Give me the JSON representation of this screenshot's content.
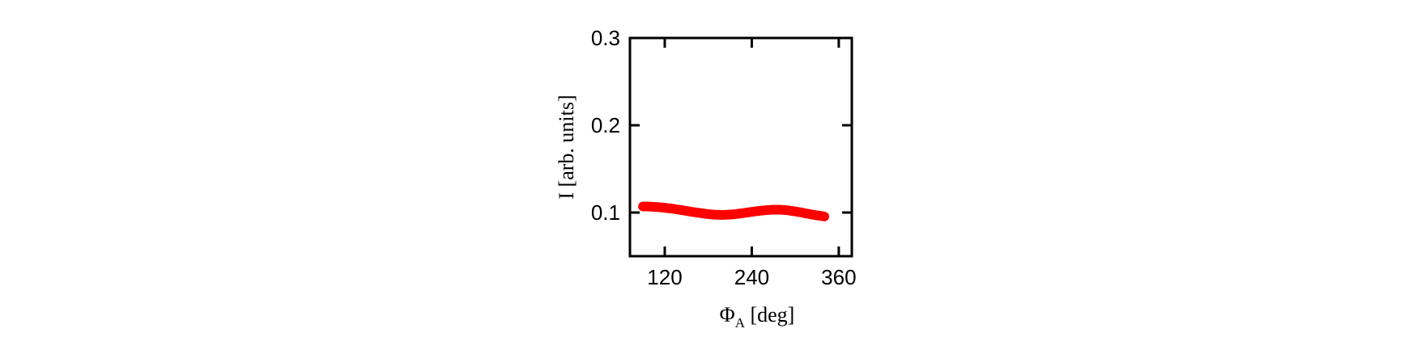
{
  "chart_data": {
    "type": "scatter",
    "xlabel_symbol": "Φ",
    "xlabel_subscript": "A",
    "xlabel_unit": " [deg]",
    "ylabel": "I [arb. units]",
    "xlim": [
      72,
      378
    ],
    "ylim": [
      0.05,
      0.3
    ],
    "xticks": [
      120,
      240,
      360
    ],
    "yticks": [
      0.1,
      0.2,
      0.3
    ],
    "xtick_labels": [
      "120",
      "240",
      "360"
    ],
    "ytick_labels": [
      "0.1",
      "0.2",
      "0.3"
    ],
    "marker_color": "#ff0000",
    "grid": false,
    "series": [
      {
        "x": [
          90,
          100,
          110,
          120,
          130,
          140,
          150,
          160,
          170,
          180,
          190,
          200,
          210,
          220,
          230,
          240,
          250,
          260,
          270,
          280,
          290,
          300,
          310,
          320,
          330,
          340
        ],
        "y": [
          0.107,
          0.1068,
          0.1062,
          0.1055,
          0.1045,
          0.1032,
          0.1018,
          0.1005,
          0.0993,
          0.0982,
          0.0975,
          0.0973,
          0.0976,
          0.0985,
          0.0996,
          0.1008,
          0.1019,
          0.1028,
          0.1033,
          0.1032,
          0.1025,
          0.1013,
          0.0998,
          0.0982,
          0.0968,
          0.0955
        ]
      }
    ]
  }
}
